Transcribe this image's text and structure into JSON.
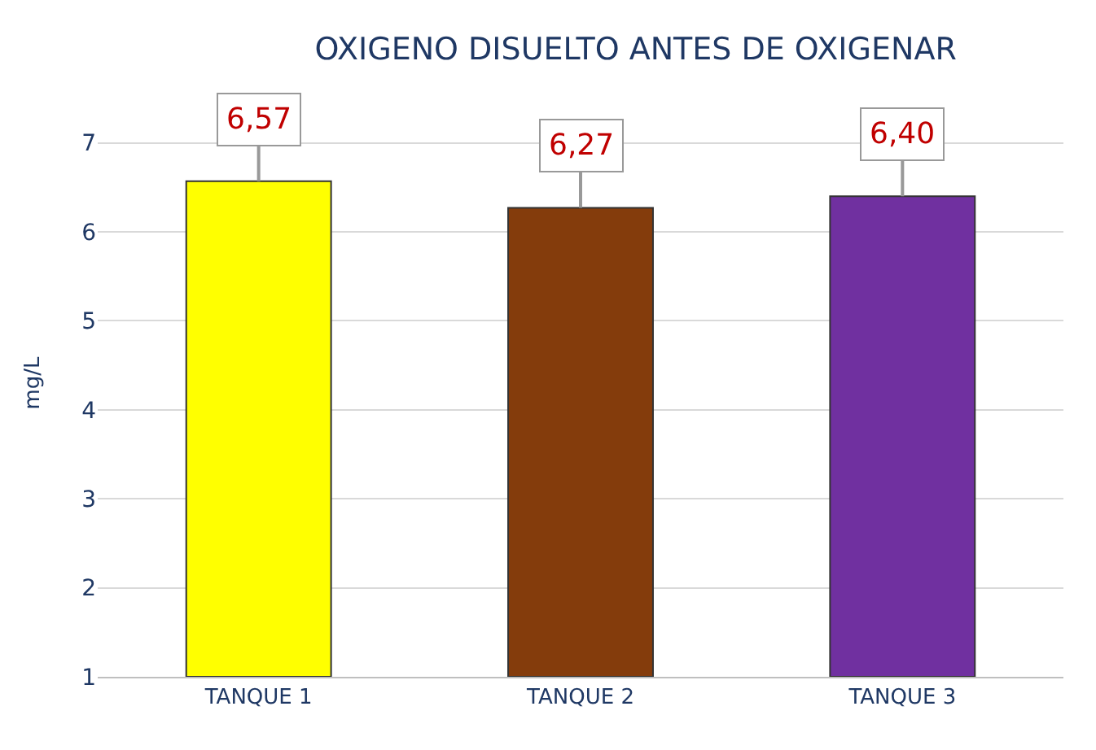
{
  "chart_data": {
    "type": "bar",
    "title": "OXIGENO DISUELTO ANTES DE OXIGENAR",
    "ylabel": "mg/L",
    "categories": [
      "TANQUE 1",
      "TANQUE 2",
      "TANQUE 3"
    ],
    "values": [
      6.57,
      6.27,
      6.4
    ],
    "colors": [
      "#ffff00",
      "#843c0c",
      "#7030a0"
    ],
    "value_labels": [
      "6,57",
      "6,27",
      "6,40"
    ],
    "ylim": [
      1,
      7.6
    ],
    "yticks": [
      1,
      2,
      3,
      4,
      5,
      6,
      7
    ],
    "grid": "y"
  }
}
